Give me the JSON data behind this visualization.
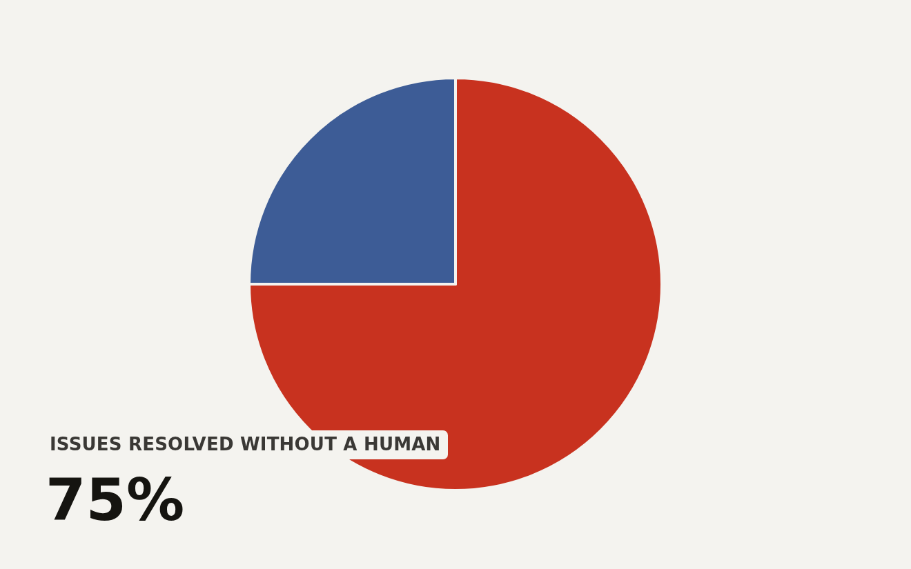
{
  "chart_data": {
    "type": "pie",
    "categories": [
      "ISSUES RESOLVED WITHOUT A HUMAN",
      null
    ],
    "values": [
      75,
      25
    ],
    "colors": [
      "#c8321f",
      "#3d5c96"
    ],
    "value_labels": [
      "75%",
      null
    ],
    "legend": false
  }
}
